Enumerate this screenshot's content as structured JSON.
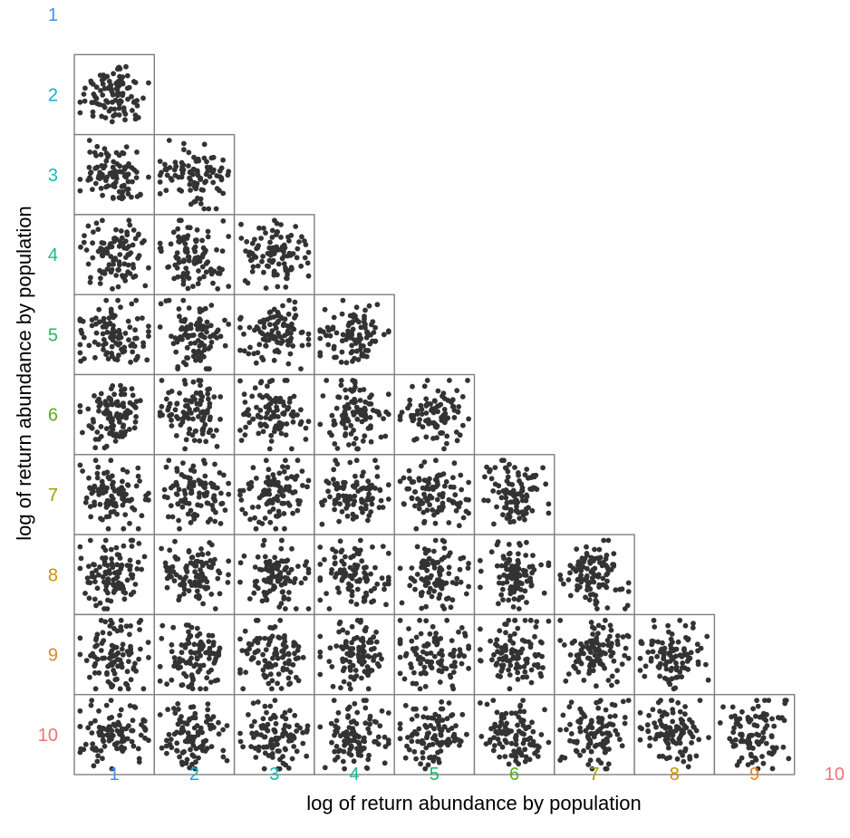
{
  "chart_data": {
    "type": "scatter",
    "layout": "lower-triangular pairs matrix",
    "xlabel": "log of return abundance by population",
    "ylabel": "log of return abundance by population",
    "populations": [
      "1",
      "2",
      "3",
      "4",
      "5",
      "6",
      "7",
      "8",
      "9",
      "10"
    ],
    "population_colors": [
      "#3D94F0",
      "#0CB0DA",
      "#12BAB8",
      "#1CB88F",
      "#1EB85C",
      "#5BAE16",
      "#9FA000",
      "#C99300",
      "#DE8A25",
      "#F0707A"
    ],
    "points_per_panel": 100,
    "series_description": "each panel plots population column (x) against population row (y) for rows 2–10 and columns 1 to row-1",
    "point_color": "#333333",
    "grid": false,
    "legend": "none"
  }
}
